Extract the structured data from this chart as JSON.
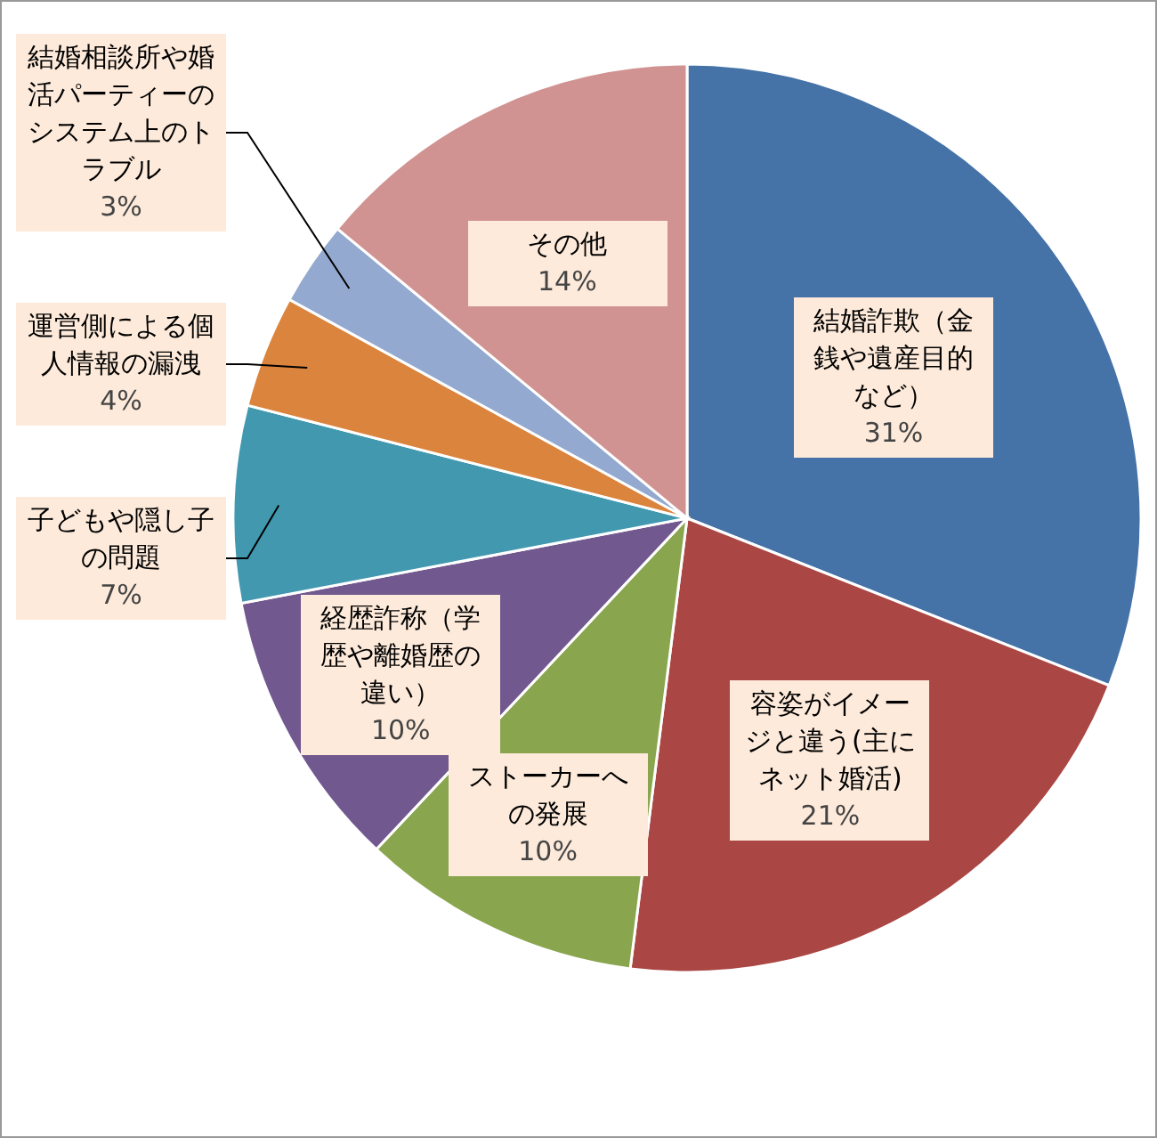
{
  "chart_data": {
    "type": "pie",
    "categories": [
      "結婚詐欺（金銭や遺産目的など）",
      "容姿がイメージと違う(主にネット婚活)",
      "ストーカーへの発展",
      "経歴詐称（学歴や離婚歴の違い）",
      "子どもや隠し子の問題",
      "運営側による個人情報の漏洩",
      "結婚相談所や婚活パーティーのシステム上のトラブル",
      "その他"
    ],
    "values": [
      31,
      21,
      10,
      10,
      7,
      4,
      3,
      14
    ],
    "colors": [
      "#4572a7",
      "#aa4643",
      "#89a54e",
      "#71588f",
      "#4198af",
      "#db843d",
      "#93a9cf",
      "#d19392"
    ],
    "value_labels": [
      "31%",
      "21%",
      "10%",
      "10%",
      "7%",
      "4%",
      "3%",
      "14%"
    ]
  }
}
